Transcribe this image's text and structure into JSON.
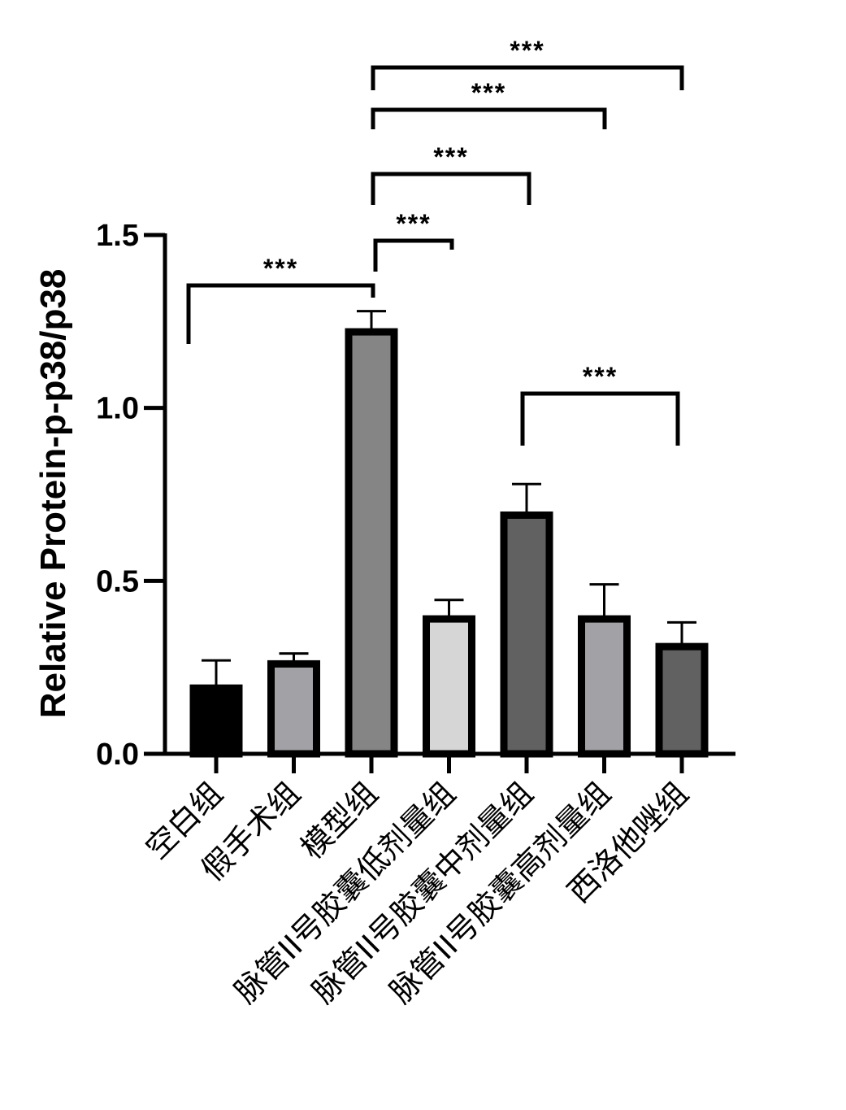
{
  "chart_data": {
    "type": "bar",
    "ylabel": "Relative  Protein-p-p38/p38",
    "ylim": [
      0,
      1.5
    ],
    "yticks": [
      "0.0",
      "0.5",
      "1.0",
      "1.5"
    ],
    "categories": [
      "空白组",
      "假手术组",
      "模型组",
      "脉管II号胶囊低剂量组",
      "脉管II号胶囊中剂量组",
      "脉管II号胶囊高剂量组",
      "西洛他唑组"
    ],
    "values": [
      0.19,
      0.26,
      1.22,
      0.39,
      0.69,
      0.39,
      0.31
    ],
    "errors": [
      0.08,
      0.03,
      0.06,
      0.055,
      0.09,
      0.1,
      0.07
    ],
    "colors": [
      "#000000",
      "#a2a2a6",
      "#858585",
      "#d6d6d6",
      "#616161",
      "#a2a2a6",
      "#616161"
    ],
    "comparisons": [
      {
        "from": 0,
        "to": 2,
        "label": "***"
      },
      {
        "from": 2,
        "to": 3,
        "label": "***"
      },
      {
        "from": 2,
        "to": 4,
        "label": "***"
      },
      {
        "from": 2,
        "to": 5,
        "label": "***"
      },
      {
        "from": 2,
        "to": 6,
        "label": "***"
      },
      {
        "from": 4,
        "to": 6,
        "label": "***"
      }
    ]
  }
}
